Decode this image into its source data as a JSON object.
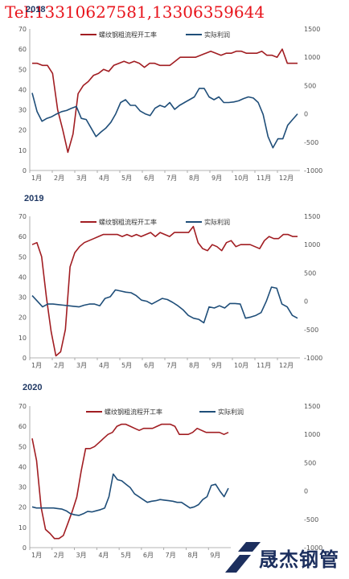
{
  "header": {
    "phone_text": "Tel:13310627581,13306359644"
  },
  "logo": {
    "text": "晟杰钢管",
    "color": "#1c2f5e"
  },
  "colors": {
    "red": "#a11d22",
    "blue": "#1f4e79",
    "axis": "#9a9a9a"
  },
  "chart_data": [
    {
      "type": "line",
      "title": "2018",
      "months": [
        "1月",
        "2月",
        "3月",
        "4月",
        "5月",
        "6月",
        "7月",
        "8月",
        "9月",
        "10月",
        "11月",
        "12月"
      ],
      "ylim_left": [
        0,
        70
      ],
      "left_ticks": [
        0,
        10,
        20,
        30,
        40,
        50,
        60,
        70
      ],
      "ylim_right": [
        -1000,
        1500
      ],
      "right_ticks": [
        -1000,
        -500,
        0,
        500,
        1000,
        1500
      ],
      "series": [
        {
          "name": "螺纹钢粗流程开工率",
          "axis": "left",
          "color": "#a11d22",
          "values": [
            53,
            53,
            52,
            52,
            48,
            30,
            20,
            9,
            18,
            38,
            42,
            44,
            47,
            48,
            50,
            49,
            52,
            53,
            54,
            53,
            54,
            53,
            51,
            53,
            53,
            52,
            52,
            52,
            54,
            56,
            56,
            56,
            56,
            57,
            58,
            59,
            58,
            57,
            58,
            58,
            59,
            59,
            58,
            58,
            58,
            59,
            57,
            57,
            56,
            60,
            53,
            53,
            53
          ]
        },
        {
          "name": "实际利润",
          "axis": "right",
          "color": "#1f4e79",
          "values": [
            370,
            40,
            -130,
            -80,
            -50,
            0,
            40,
            60,
            100,
            130,
            -80,
            -100,
            -250,
            -400,
            -320,
            -250,
            -150,
            0,
            200,
            250,
            150,
            150,
            50,
            0,
            -30,
            100,
            150,
            120,
            200,
            80,
            150,
            200,
            250,
            300,
            450,
            450,
            300,
            250,
            300,
            200,
            200,
            210,
            230,
            270,
            300,
            280,
            200,
            -10,
            -400,
            -600,
            -440,
            -440,
            -200,
            -100,
            0
          ]
        }
      ]
    },
    {
      "type": "line",
      "title": "2019",
      "months": [
        "1月",
        "2月",
        "3月",
        "4月",
        "5月",
        "6月",
        "7月",
        "8月",
        "9月",
        "10月",
        "11月",
        "12月"
      ],
      "ylim_left": [
        0,
        70
      ],
      "left_ticks": [
        0,
        10,
        20,
        30,
        40,
        50,
        60,
        70
      ],
      "ylim_right": [
        -1000,
        1500
      ],
      "right_ticks": [
        -1000,
        -500,
        0,
        500,
        1000,
        1500
      ],
      "series": [
        {
          "name": "螺纹钢粗流程开工率",
          "axis": "left",
          "color": "#a11d22",
          "values": [
            56,
            57,
            50,
            30,
            13,
            1,
            3,
            14,
            45,
            52,
            55,
            57,
            58,
            59,
            60,
            61,
            61,
            61,
            61,
            60,
            61,
            60,
            61,
            60,
            61,
            62,
            60,
            62,
            61,
            60,
            62,
            62,
            62,
            62,
            65,
            57,
            54,
            53,
            56,
            55,
            53,
            57,
            58,
            55,
            56,
            56,
            56,
            55,
            54,
            58,
            60,
            59,
            59,
            61,
            61,
            60,
            60
          ]
        },
        {
          "name": "实际利润",
          "axis": "right",
          "color": "#1f4e79",
          "values": [
            100,
            0,
            -100,
            -50,
            -50,
            -60,
            -70,
            -80,
            -90,
            -100,
            -70,
            -50,
            -50,
            -80,
            50,
            80,
            200,
            180,
            160,
            150,
            100,
            20,
            0,
            -50,
            0,
            50,
            30,
            -20,
            -80,
            -150,
            -250,
            -300,
            -320,
            -380,
            -100,
            -120,
            -80,
            -120,
            -40,
            -40,
            -50,
            -300,
            -280,
            -250,
            -200,
            0,
            250,
            230,
            -50,
            -100,
            -250,
            -300
          ]
        }
      ]
    },
    {
      "type": "line",
      "title": "2020",
      "months": [
        "1月",
        "2月",
        "3月",
        "4月",
        "5月",
        "6月",
        "7月",
        "8月",
        "9月"
      ],
      "ylim_left": [
        0,
        70
      ],
      "left_ticks": [
        0,
        10,
        20,
        30,
        40,
        50,
        60,
        70
      ],
      "ylim_right": [
        -1000,
        1500
      ],
      "right_ticks": [
        -1000,
        -500,
        0,
        500,
        1000,
        1500
      ],
      "series": [
        {
          "name": "螺纹钢粗流程开工率",
          "axis": "left",
          "color": "#a11d22",
          "values": [
            54,
            43,
            20,
            9,
            7,
            4.5,
            4.5,
            6,
            12,
            18,
            25,
            38,
            49,
            49,
            50,
            52,
            54,
            56,
            57,
            60,
            61,
            61,
            60,
            59,
            58,
            59,
            59,
            59,
            60,
            61,
            61,
            61,
            60,
            56,
            56,
            56,
            57,
            59,
            58,
            57,
            57,
            57,
            57,
            56,
            57
          ]
        },
        {
          "name": "实际利润",
          "axis": "right",
          "color": "#1f4e79",
          "values": [
            -280,
            -300,
            -300,
            -300,
            -300,
            -300,
            -310,
            -320,
            -350,
            -400,
            -420,
            -430,
            -400,
            -360,
            -370,
            -350,
            -330,
            -300,
            -100,
            300,
            200,
            180,
            120,
            60,
            -50,
            -100,
            -150,
            -200,
            -180,
            -170,
            -150,
            -160,
            -170,
            -180,
            -200,
            -200,
            -250,
            -300,
            -280,
            -240,
            -150,
            -100,
            100,
            120,
            0,
            -100,
            50
          ]
        }
      ]
    }
  ]
}
